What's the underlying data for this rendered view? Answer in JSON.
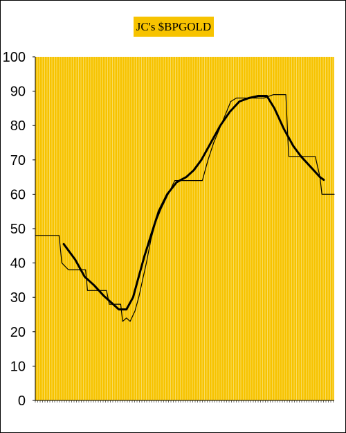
{
  "chart_data": {
    "type": "line",
    "title": "JC's $BPGOLD",
    "xlabel": "",
    "ylabel": "",
    "ylim": [
      0,
      100
    ],
    "yticks": [
      0,
      10,
      20,
      30,
      40,
      50,
      60,
      70,
      80,
      90,
      100
    ],
    "grid": "vertical",
    "legend": "none",
    "colors": {
      "plot_background": "#f7c300",
      "gridline": "#f9e27a",
      "line": "#000000",
      "title_box": "#f7c300"
    },
    "series": [
      {
        "style": "thin",
        "points": [
          [
            0,
            48
          ],
          [
            25,
            48
          ],
          [
            28,
            40
          ],
          [
            35,
            38
          ],
          [
            53,
            38
          ],
          [
            55,
            32
          ],
          [
            75,
            32
          ],
          [
            78,
            28
          ],
          [
            90,
            28
          ],
          [
            92,
            23
          ],
          [
            96,
            24
          ],
          [
            100,
            23
          ],
          [
            105,
            26
          ],
          [
            109,
            30
          ],
          [
            113,
            35
          ],
          [
            117,
            40
          ],
          [
            122,
            47
          ],
          [
            127,
            52
          ],
          [
            133,
            56
          ],
          [
            140,
            60
          ],
          [
            147,
            64
          ],
          [
            176,
            64
          ],
          [
            182,
            70
          ],
          [
            188,
            75
          ],
          [
            194,
            79
          ],
          [
            200,
            83
          ],
          [
            206,
            87
          ],
          [
            212,
            88
          ],
          [
            241,
            88
          ],
          [
            251,
            89
          ],
          [
            264,
            89
          ],
          [
            267,
            71
          ],
          [
            295,
            71
          ],
          [
            300,
            65
          ],
          [
            302,
            60
          ],
          [
            315,
            60
          ]
        ]
      },
      {
        "style": "thick",
        "points": [
          [
            30,
            45.5
          ],
          [
            42,
            41
          ],
          [
            52,
            36
          ],
          [
            62,
            33.5
          ],
          [
            72,
            30.5
          ],
          [
            82,
            28
          ],
          [
            88,
            26.5
          ],
          [
            96,
            26.5
          ],
          [
            103,
            30
          ],
          [
            108,
            35
          ],
          [
            115,
            42
          ],
          [
            123,
            49
          ],
          [
            130,
            55
          ],
          [
            139,
            60
          ],
          [
            149,
            63.5
          ],
          [
            159,
            65
          ],
          [
            167,
            67
          ],
          [
            175,
            70
          ],
          [
            185,
            75
          ],
          [
            195,
            80
          ],
          [
            205,
            84
          ],
          [
            215,
            87
          ],
          [
            225,
            88
          ],
          [
            235,
            88.6
          ],
          [
            244,
            88.6
          ],
          [
            252,
            85
          ],
          [
            262,
            79
          ],
          [
            272,
            74
          ],
          [
            280,
            71
          ],
          [
            290,
            68
          ],
          [
            300,
            65
          ],
          [
            304,
            64.2
          ]
        ]
      }
    ]
  }
}
